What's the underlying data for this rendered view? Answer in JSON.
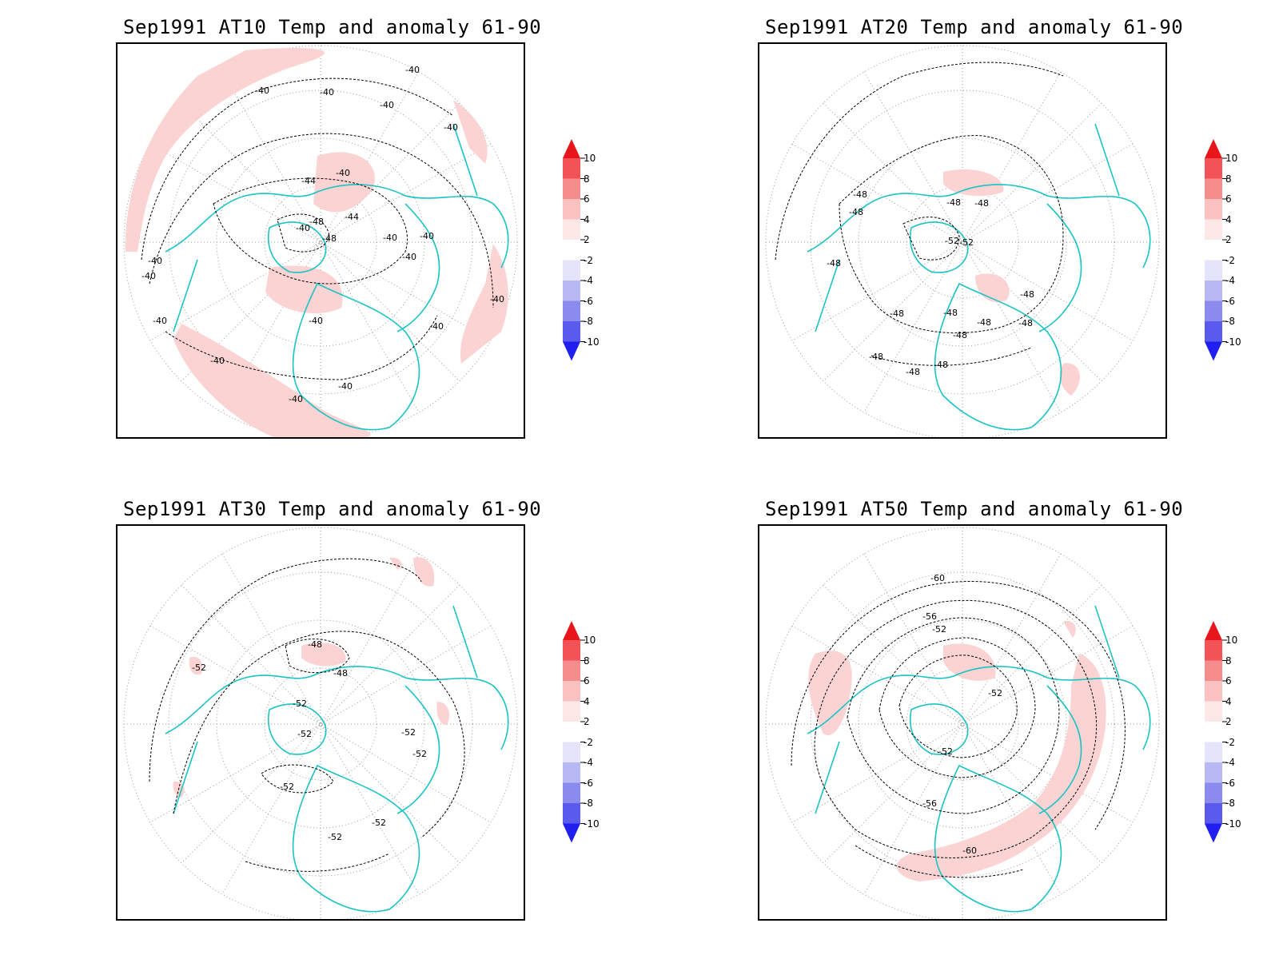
{
  "panels": [
    {
      "id": "at10",
      "title": "Sep1991 AT10 Temp and anomaly 61-90",
      "contour_labels": [
        "-40",
        "-40",
        "-40",
        "-40",
        "-40",
        "-44",
        "-40",
        "-48",
        "-40",
        "-40",
        "-44",
        "-40",
        "-48",
        "-40",
        "-40",
        "-40",
        "-40",
        "-40",
        "-40",
        "-40",
        "-40",
        "-40",
        "-40"
      ]
    },
    {
      "id": "at20",
      "title": "Sep1991 AT20 Temp and anomaly 61-90",
      "contour_labels": [
        "-48",
        "-48",
        "-48",
        "-48",
        "-52",
        "-52",
        "-48",
        "-48",
        "-48",
        "-48",
        "-48",
        "-48",
        "-48",
        "-48",
        "-48",
        "-48"
      ]
    },
    {
      "id": "at30",
      "title": "Sep1991 AT30 Temp and anomaly 61-90",
      "contour_labels": [
        "-48",
        "-52",
        "-48",
        "-52",
        "-52",
        "-52",
        "-52",
        "-52",
        "-52",
        "-52"
      ]
    },
    {
      "id": "at50",
      "title": "Sep1991 AT50 Temp and anomaly 61-90",
      "contour_labels": [
        "-60",
        "-56",
        "-52",
        "-52",
        "-52",
        "-56",
        "-60"
      ]
    }
  ],
  "legend": {
    "labels": [
      "10",
      "8",
      "6",
      "4",
      "2",
      "-2",
      "-4",
      "-6",
      "-8",
      "-10"
    ],
    "colors": {
      "c10": "#e8151b",
      "c8": "#f25356",
      "c6": "#f78c8c",
      "c4": "#fbc0c0",
      "c2": "#fde8e8",
      "n2": "#e4e4fb",
      "n4": "#b8b8f5",
      "n6": "#8a8aef",
      "n8": "#5a5aec",
      "n10": "#1f1ff0"
    }
  },
  "styles": {
    "coast_color": "#19c4c4",
    "anomaly_fill": "#fbd3d3",
    "contour_color": "#000000"
  }
}
